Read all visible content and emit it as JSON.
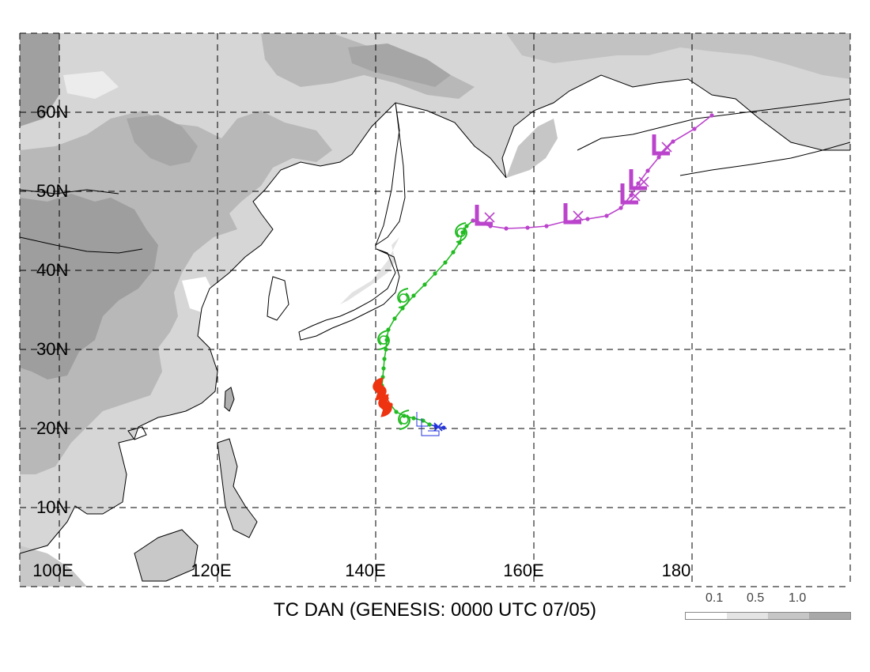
{
  "title": "TC DAN (GENESIS: 0000 UTC 07/05)",
  "lat_labels": [
    "60N",
    "50N",
    "40N",
    "30N",
    "20N",
    "10N"
  ],
  "lon_labels": [
    "100E",
    "120E",
    "140E",
    "160E",
    "180"
  ],
  "legend": {
    "ticks": [
      "0.1",
      "0.5",
      "1.0"
    ],
    "colors": [
      "#ffffff",
      "#e4e4e4",
      "#c6c6c6",
      "#a8a8a8"
    ]
  },
  "colors": {
    "land_light": "#d6d6d6",
    "land_mid": "#b4b4b4",
    "land_dark": "#9a9a9a",
    "grid": "#000000",
    "track_depression": "#2233dd",
    "track_storm": "#22bb22",
    "track_typhoon": "#ee3311",
    "track_extratropical": "#bb44cc"
  },
  "track": {
    "depression": [
      [
        148.6,
        20.1
      ],
      [
        147.6,
        20.3
      ],
      [
        146.8,
        20.5
      ]
    ],
    "storm_early": [
      [
        146.8,
        20.5
      ],
      [
        146.0,
        21.0
      ],
      [
        144.8,
        21.3
      ],
      [
        143.6,
        21.6
      ],
      [
        142.6,
        22.1
      ],
      [
        141.9,
        23.0
      ]
    ],
    "typhoon": [
      [
        141.9,
        23.0
      ],
      [
        141.4,
        23.8
      ],
      [
        141.0,
        24.6
      ],
      [
        140.8,
        25.4
      ]
    ],
    "storm_late": [
      [
        140.8,
        25.4
      ],
      [
        140.9,
        26.5
      ],
      [
        141.0,
        27.6
      ],
      [
        141.1,
        28.8
      ],
      [
        141.3,
        30.0
      ],
      [
        141.4,
        31.2
      ],
      [
        141.6,
        32.5
      ],
      [
        142.4,
        33.9
      ],
      [
        143.4,
        35.2
      ],
      [
        144.8,
        36.8
      ],
      [
        146.2,
        38.2
      ],
      [
        147.5,
        39.6
      ],
      [
        148.8,
        41.0
      ],
      [
        149.8,
        42.3
      ],
      [
        150.6,
        43.5
      ],
      [
        151.0,
        44.8
      ],
      [
        151.5,
        45.6
      ],
      [
        152.3,
        46.3
      ]
    ],
    "extratropical": [
      [
        152.3,
        46.3
      ],
      [
        153.0,
        46.0
      ],
      [
        154.5,
        45.6
      ],
      [
        156.5,
        45.3
      ],
      [
        159.2,
        45.4
      ],
      [
        161.6,
        45.6
      ],
      [
        164.0,
        46.2
      ],
      [
        166.8,
        46.5
      ],
      [
        169.2,
        46.9
      ],
      [
        171.0,
        47.9
      ],
      [
        172.3,
        49.5
      ],
      [
        173.2,
        51.0
      ],
      [
        174.4,
        52.6
      ],
      [
        175.8,
        54.3
      ],
      [
        177.6,
        56.3
      ],
      [
        180.3,
        57.9
      ],
      [
        182.5,
        59.6
      ]
    ],
    "symbols": {
      "depression": [
        [
          147.0,
          20.1
        ]
      ],
      "storm": [
        [
          143.6,
          21.1
        ],
        [
          141.0,
          31.2
        ],
        [
          143.5,
          36.5
        ],
        [
          150.8,
          44.8
        ]
      ],
      "typhoon": [
        [
          140.5,
          25.0
        ],
        [
          141.2,
          22.9
        ]
      ],
      "extratropical": [
        [
          153.6,
          46.3
        ],
        [
          164.8,
          46.5
        ],
        [
          172.0,
          49.0
        ],
        [
          173.1,
          50.8
        ],
        [
          176.0,
          55.2
        ]
      ]
    }
  }
}
